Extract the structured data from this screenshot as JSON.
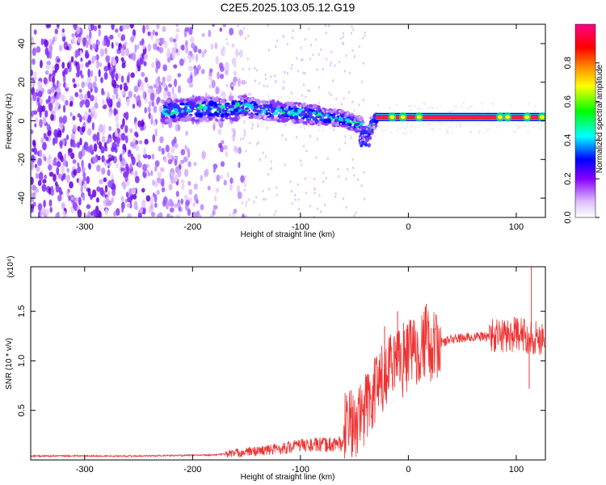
{
  "chart_data": [
    {
      "type": "heatmap",
      "title": "C2E5.2025.103.05.12.G19",
      "xlabel": "Height of straight line (km)",
      "ylabel": "Frequency (Hz)",
      "xlim": [
        -350,
        127
      ],
      "ylim": [
        -50,
        50
      ],
      "xticks": [
        -300,
        -200,
        -100,
        0,
        100
      ],
      "yticks": [
        -40,
        -20,
        0,
        20,
        40
      ],
      "colorbar": {
        "label": "Normalized spectral amplitude",
        "range": [
          0,
          1
        ],
        "ticks": [
          "0.0",
          "0.2",
          "0.4",
          "0.6",
          "0.8"
        ],
        "colors": [
          "#ffffff",
          "#8800ff",
          "#0000ff",
          "#00ffff",
          "#00ff00",
          "#ffff00",
          "#ff8800",
          "#ff0000",
          "#ff0088"
        ]
      },
      "ridge": {
        "x": [
          -225,
          -200,
          -175,
          -150,
          -125,
          -100,
          -75,
          -60,
          -45,
          -38,
          -30,
          127
        ],
        "y": [
          5,
          6,
          6,
          7,
          5,
          4,
          2,
          1,
          -2,
          -7,
          2,
          2
        ]
      }
    },
    {
      "type": "line",
      "xlabel": "Height of straight line (km)",
      "ylabel": "SNR (10 * v/v)",
      "y_multiplier": "(x10⁴)",
      "xlim": [
        -350,
        127
      ],
      "ylim": [
        0,
        1.95
      ],
      "xticks": [
        -300,
        -200,
        -100,
        0,
        100
      ],
      "yticks": [
        "0.5",
        "1.0",
        "1.5"
      ],
      "line_color": "#ee3333",
      "envelope": {
        "x": [
          -350,
          -250,
          -180,
          -160,
          -130,
          -110,
          -100,
          -80,
          -60,
          -50,
          -40,
          -30,
          -20,
          -10,
          0,
          10,
          20,
          30,
          40,
          60,
          80,
          100,
          110,
          120,
          127
        ],
        "y": [
          0.04,
          0.04,
          0.05,
          0.07,
          0.1,
          0.13,
          0.15,
          0.15,
          0.17,
          0.23,
          0.4,
          0.6,
          0.72,
          0.85,
          0.95,
          1.05,
          1.12,
          1.18,
          1.22,
          1.24,
          1.25,
          1.27,
          1.25,
          1.23,
          1.25
        ]
      }
    }
  ]
}
